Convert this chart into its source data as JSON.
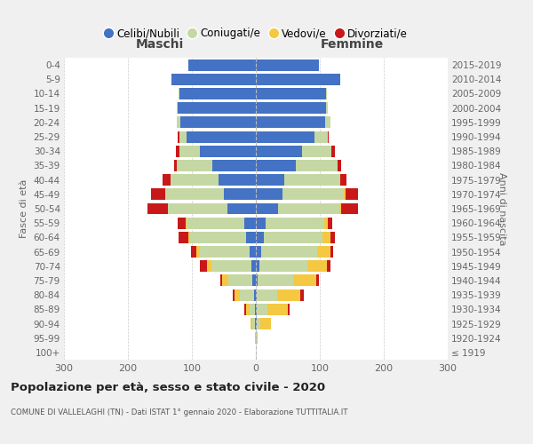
{
  "age_groups": [
    "100+",
    "95-99",
    "90-94",
    "85-89",
    "80-84",
    "75-79",
    "70-74",
    "65-69",
    "60-64",
    "55-59",
    "50-54",
    "45-49",
    "40-44",
    "35-39",
    "30-34",
    "25-29",
    "20-24",
    "15-19",
    "10-14",
    "5-9",
    "0-4"
  ],
  "birth_years": [
    "≤ 1919",
    "1920-1924",
    "1925-1929",
    "1930-1934",
    "1935-1939",
    "1940-1944",
    "1945-1949",
    "1950-1954",
    "1955-1959",
    "1960-1964",
    "1965-1969",
    "1970-1974",
    "1975-1979",
    "1980-1984",
    "1985-1989",
    "1990-1994",
    "1995-1999",
    "2000-2004",
    "2005-2009",
    "2010-2014",
    "2015-2019"
  ],
  "maschi": {
    "celibi": [
      0,
      0,
      1,
      2,
      3,
      5,
      7,
      10,
      15,
      18,
      45,
      50,
      58,
      68,
      88,
      108,
      118,
      122,
      120,
      132,
      105
    ],
    "coniugati": [
      0,
      0,
      4,
      8,
      22,
      38,
      62,
      78,
      88,
      90,
      92,
      92,
      76,
      55,
      32,
      12,
      5,
      2,
      1,
      0,
      0
    ],
    "vedovi": [
      0,
      1,
      3,
      5,
      8,
      10,
      8,
      5,
      3,
      2,
      1,
      0,
      0,
      0,
      0,
      0,
      0,
      0,
      0,
      0,
      0
    ],
    "divorziati": [
      0,
      0,
      0,
      3,
      3,
      2,
      10,
      8,
      15,
      12,
      32,
      22,
      12,
      5,
      5,
      2,
      1,
      0,
      0,
      0,
      0
    ]
  },
  "femmine": {
    "nubili": [
      0,
      0,
      1,
      2,
      2,
      3,
      5,
      8,
      12,
      15,
      35,
      42,
      45,
      62,
      72,
      92,
      108,
      110,
      110,
      132,
      98
    ],
    "coniugate": [
      0,
      1,
      6,
      16,
      32,
      55,
      76,
      88,
      92,
      92,
      96,
      96,
      86,
      66,
      46,
      20,
      8,
      3,
      1,
      0,
      0
    ],
    "vedove": [
      0,
      2,
      16,
      32,
      36,
      36,
      30,
      20,
      12,
      5,
      3,
      2,
      1,
      0,
      0,
      0,
      0,
      0,
      0,
      0,
      0
    ],
    "divorziate": [
      0,
      0,
      0,
      3,
      5,
      5,
      5,
      5,
      8,
      8,
      26,
      20,
      10,
      5,
      5,
      2,
      1,
      0,
      0,
      0,
      0
    ]
  },
  "colors": {
    "celibi": "#4472c4",
    "coniugati": "#c5d8a4",
    "vedovi": "#f5c842",
    "divorziati": "#c8181a"
  },
  "xlim": 300,
  "title": "Popolazione per età, sesso e stato civile - 2020",
  "subtitle": "COMUNE DI VALLELAGHI (TN) - Dati ISTAT 1° gennaio 2020 - Elaborazione TUTTITALIA.IT",
  "ylabel_left": "Fasce di età",
  "ylabel_right": "Anni di nascita",
  "label_maschi": "Maschi",
  "label_femmine": "Femmine",
  "legend_labels": [
    "Celibi/Nubili",
    "Coniugati/e",
    "Vedovi/e",
    "Divorziati/e"
  ],
  "bg_color": "#f0f0f0",
  "plot_bg": "#ffffff"
}
